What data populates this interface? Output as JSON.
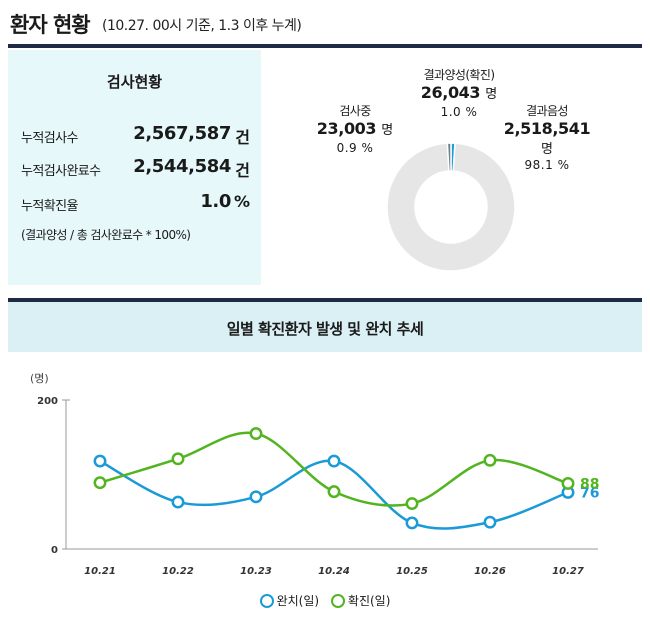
{
  "header": {
    "title": "환자 현황",
    "subtitle": "(10.27. 00시 기준, 1.3 이후 누계)"
  },
  "stats": {
    "title": "검사현황",
    "rows": [
      {
        "label": "누적검사수",
        "value": "2,567,587",
        "unit": "건"
      },
      {
        "label": "누적검사완료수",
        "value": "2,544,584",
        "unit": "건"
      },
      {
        "label": "누적확진율",
        "value": "1.0",
        "unit": "%"
      }
    ],
    "note": "(결과양성 / 총 검사완료수 * 100%)"
  },
  "donut": {
    "unit": "명",
    "segments": [
      {
        "label": "결과양성(확진)",
        "value": "26,043",
        "percent": "1.0 %",
        "fraction": 0.01,
        "color": "#1a9ee0"
      },
      {
        "label": "결과음성",
        "value": "2,518,541",
        "percent": "98.1 %",
        "fraction": 0.981,
        "color": "#e6e6e6"
      },
      {
        "label": "검사중",
        "value": "23,003",
        "percent": "0.9 %",
        "fraction": 0.009,
        "color": "#6e7f88"
      }
    ]
  },
  "chart_section": {
    "title": "일별 확진환자 발생 및 완치 추세"
  },
  "chart_data": {
    "type": "line",
    "y_unit_label": "(명)",
    "x": [
      "10.21",
      "10.22",
      "10.23",
      "10.24",
      "10.25",
      "10.26",
      "10.27"
    ],
    "ylim": [
      0,
      200
    ],
    "yticks": [
      "200",
      "0"
    ],
    "series": [
      {
        "name": "완치(일)",
        "color": "#1a9ad6",
        "values": [
          118,
          63,
          70,
          118,
          35,
          36,
          76
        ],
        "end_label": "76"
      },
      {
        "name": "확진(일)",
        "color": "#52b51f",
        "values": [
          89,
          121,
          155,
          77,
          61,
          119,
          88
        ],
        "end_label": "88"
      }
    ]
  }
}
